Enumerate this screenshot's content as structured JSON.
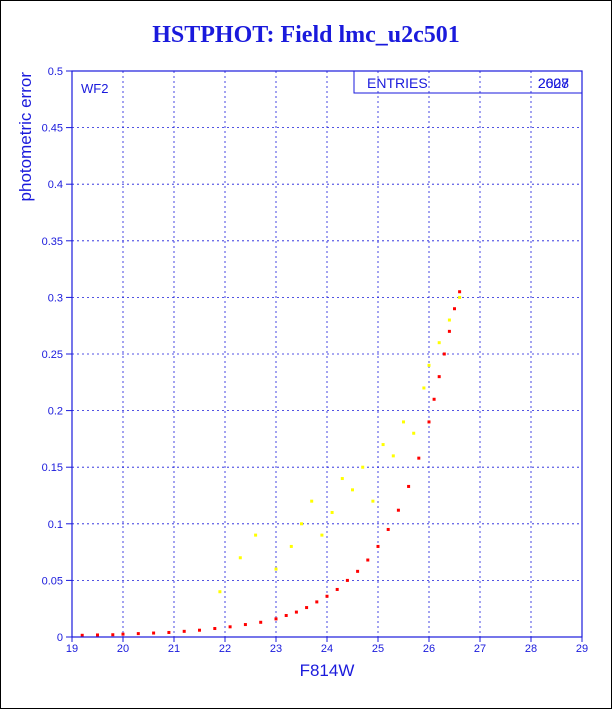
{
  "chart_data": {
    "type": "scatter",
    "title": "HSTPHOT: Field lmc_u2c501",
    "xlabel": "F814W",
    "ylabel": "photometric error",
    "xlim": [
      19,
      29
    ],
    "ylim": [
      0,
      0.5
    ],
    "x_ticks": [
      "19",
      "20",
      "21",
      "22",
      "23",
      "24",
      "25",
      "26",
      "27",
      "28",
      "29"
    ],
    "y_ticks": [
      "0",
      "0.05",
      "0.1",
      "0.15",
      "0.2",
      "0.25",
      "0.3",
      "0.35",
      "0.4",
      "0.45",
      "0.5"
    ],
    "grid": true,
    "panel_label": "WF2",
    "stats_box": {
      "label": "ENTRIES",
      "value": "2007",
      "overprinted_value": "2628"
    },
    "series": [
      {
        "color": "#ff0000",
        "x": [
          19.2,
          19.5,
          19.8,
          20.0,
          20.3,
          20.6,
          20.9,
          21.2,
          21.5,
          21.8,
          22.1,
          22.4,
          22.7,
          23.0,
          23.2,
          23.4,
          23.6,
          23.8,
          24.0,
          24.2,
          24.4,
          24.6,
          24.8,
          25.0,
          25.2,
          25.4,
          25.6,
          25.8,
          26.0,
          26.1,
          26.2,
          26.3,
          26.4,
          26.5,
          26.6
        ],
        "y": [
          0.0015,
          0.0018,
          0.002,
          0.0025,
          0.003,
          0.0035,
          0.004,
          0.005,
          0.006,
          0.0075,
          0.009,
          0.011,
          0.013,
          0.016,
          0.019,
          0.022,
          0.026,
          0.031,
          0.036,
          0.042,
          0.05,
          0.058,
          0.068,
          0.08,
          0.095,
          0.112,
          0.133,
          0.158,
          0.19,
          0.21,
          0.23,
          0.25,
          0.27,
          0.29,
          0.305
        ]
      },
      {
        "color": "#ffff00",
        "x": [
          21.9,
          22.3,
          22.6,
          23.0,
          23.3,
          23.5,
          23.7,
          23.9,
          24.1,
          24.3,
          24.5,
          24.7,
          24.9,
          25.1,
          25.3,
          25.5,
          25.7,
          25.9,
          26.0,
          26.2,
          26.4,
          26.6
        ],
        "y": [
          0.04,
          0.07,
          0.09,
          0.06,
          0.08,
          0.1,
          0.12,
          0.09,
          0.11,
          0.14,
          0.13,
          0.15,
          0.12,
          0.17,
          0.16,
          0.19,
          0.18,
          0.22,
          0.24,
          0.26,
          0.28,
          0.3
        ]
      }
    ]
  }
}
